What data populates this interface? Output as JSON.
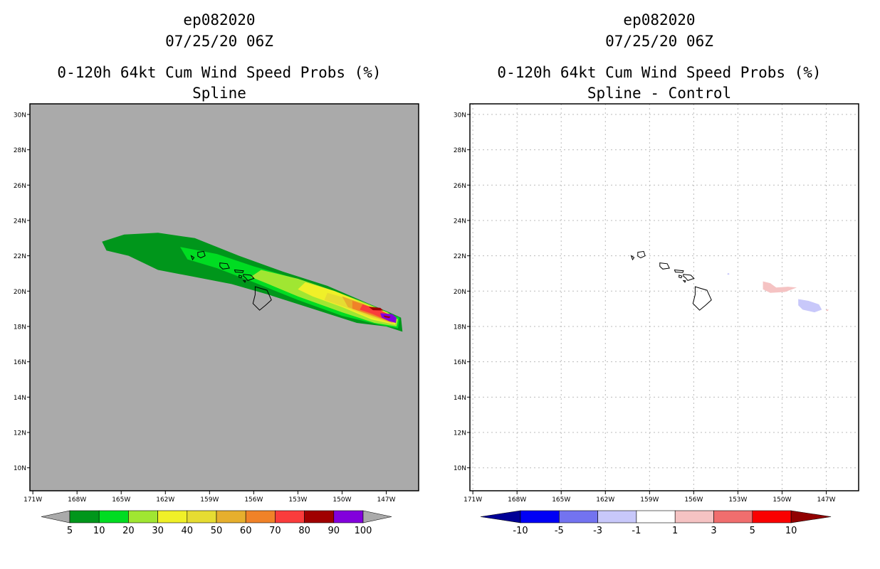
{
  "chart_data": [
    {
      "type": "heatmap",
      "title_lines": [
        "ep082020",
        "07/25/20 06Z",
        "0-120h 64kt Cum Wind Speed Probs (%)",
        "Spline"
      ],
      "x_ticks": [
        "171W",
        "168W",
        "165W",
        "162W",
        "159W",
        "156W",
        "153W",
        "150W",
        "147W"
      ],
      "y_ticks": [
        "10N",
        "12N",
        "14N",
        "16N",
        "18N",
        "20N",
        "22N",
        "24N",
        "26N",
        "28N",
        "30N"
      ],
      "xlim": [
        -171.2,
        -144.8
      ],
      "ylim": [
        8.7,
        30.6
      ],
      "background": "#aaaaaa",
      "levels": [
        {
          "label": "5",
          "min": 5,
          "color": "#00961b"
        },
        {
          "label": "10",
          "min": 10,
          "color": "#00dc22"
        },
        {
          "label": "20",
          "min": 20,
          "color": "#a0e632"
        },
        {
          "label": "30",
          "min": 30,
          "color": "#f0f028"
        },
        {
          "label": "40",
          "min": 40,
          "color": "#e6dc32"
        },
        {
          "label": "50",
          "min": 50,
          "color": "#e6af2d"
        },
        {
          "label": "60",
          "min": 60,
          "color": "#f08228"
        },
        {
          "label": "70",
          "min": 70,
          "color": "#fa3c3c"
        },
        {
          "label": "80",
          "min": 80,
          "color": "#a00000"
        },
        {
          "label": "90",
          "min": 90,
          "color": "#8200dc"
        },
        {
          "label": "100",
          "min": 100,
          "color": "#aaaaaa"
        }
      ],
      "colorbar_labels": [
        "5",
        "10",
        "20",
        "30",
        "40",
        "50",
        "60",
        "70",
        "80",
        "90",
        "100"
      ],
      "contours": [
        {
          "level": 5,
          "points": [
            [
              -166.3,
              22.8
            ],
            [
              -164.8,
              23.2
            ],
            [
              -162.5,
              23.3
            ],
            [
              -160.0,
              23.0
            ],
            [
              -157.0,
              22.0
            ],
            [
              -154.0,
              21.1
            ],
            [
              -151.0,
              20.3
            ],
            [
              -148.5,
              19.4
            ],
            [
              -146.8,
              18.8
            ],
            [
              -146.0,
              18.5
            ],
            [
              -145.9,
              17.7
            ],
            [
              -147.0,
              18.0
            ],
            [
              -149.0,
              18.2
            ],
            [
              -152.0,
              19.0
            ],
            [
              -155.0,
              19.8
            ],
            [
              -157.5,
              20.4
            ],
            [
              -160.0,
              20.8
            ],
            [
              -162.5,
              21.2
            ],
            [
              -164.5,
              22.0
            ],
            [
              -166.0,
              22.3
            ]
          ]
        },
        {
          "level": 10,
          "points": [
            [
              -161.0,
              22.5
            ],
            [
              -158.5,
              22.1
            ],
            [
              -156.0,
              21.4
            ],
            [
              -153.5,
              20.8
            ],
            [
              -151.0,
              20.1
            ],
            [
              -148.5,
              19.3
            ],
            [
              -147.0,
              18.8
            ],
            [
              -146.1,
              18.5
            ],
            [
              -146.2,
              17.9
            ],
            [
              -147.5,
              18.1
            ],
            [
              -150.0,
              18.6
            ],
            [
              -153.0,
              19.5
            ],
            [
              -156.0,
              20.5
            ],
            [
              -158.5,
              21.3
            ],
            [
              -160.5,
              21.8
            ]
          ]
        },
        {
          "level": 20,
          "points": [
            [
              -155.5,
              21.2
            ],
            [
              -153.0,
              20.7
            ],
            [
              -150.5,
              20.0
            ],
            [
              -148.3,
              19.3
            ],
            [
              -146.9,
              18.8
            ],
            [
              -146.2,
              18.4
            ],
            [
              -146.3,
              18.0
            ],
            [
              -147.8,
              18.2
            ],
            [
              -150.0,
              18.8
            ],
            [
              -153.0,
              19.7
            ],
            [
              -155.0,
              20.4
            ],
            [
              -156.2,
              20.8
            ]
          ]
        },
        {
          "level": 30,
          "points": [
            [
              -152.5,
              20.5
            ],
            [
              -150.5,
              20.0
            ],
            [
              -148.5,
              19.3
            ],
            [
              -147.0,
              18.8
            ],
            [
              -146.3,
              18.4
            ],
            [
              -146.4,
              18.1
            ],
            [
              -148.0,
              18.4
            ],
            [
              -150.0,
              19.1
            ],
            [
              -152.0,
              19.7
            ],
            [
              -153.0,
              20.1
            ]
          ]
        },
        {
          "level": 40,
          "points": [
            [
              -151.0,
              19.9
            ],
            [
              -149.3,
              19.5
            ],
            [
              -147.6,
              18.9
            ],
            [
              -146.4,
              18.4
            ],
            [
              -146.5,
              18.15
            ],
            [
              -148.0,
              18.5
            ],
            [
              -149.8,
              19.1
            ],
            [
              -151.2,
              19.5
            ]
          ]
        },
        {
          "level": 50,
          "points": [
            [
              -150.0,
              19.7
            ],
            [
              -148.6,
              19.3
            ],
            [
              -147.3,
              18.8
            ],
            [
              -146.5,
              18.4
            ],
            [
              -146.6,
              18.2
            ],
            [
              -148.0,
              18.6
            ],
            [
              -149.6,
              19.1
            ]
          ]
        },
        {
          "level": 60,
          "points": [
            [
              -149.3,
              19.45
            ],
            [
              -148.0,
              19.1
            ],
            [
              -147.0,
              18.7
            ],
            [
              -146.5,
              18.4
            ],
            [
              -146.7,
              18.25
            ],
            [
              -148.0,
              18.65
            ],
            [
              -149.3,
              19.0
            ]
          ]
        },
        {
          "level": 70,
          "points": [
            [
              -148.6,
              19.25
            ],
            [
              -147.5,
              18.95
            ],
            [
              -146.6,
              18.6
            ],
            [
              -146.5,
              18.35
            ],
            [
              -146.8,
              18.3
            ],
            [
              -147.9,
              18.7
            ],
            [
              -148.8,
              18.95
            ]
          ]
        },
        {
          "level": 80,
          "points": [
            [
              -148.2,
              19.12
            ],
            [
              -147.4,
              19.05
            ],
            [
              -147.2,
              18.9
            ],
            [
              -147.9,
              18.92
            ]
          ]
        },
        {
          "level": 90,
          "points": [
            [
              -147.4,
              18.75
            ],
            [
              -146.6,
              18.7
            ],
            [
              -146.3,
              18.5
            ],
            [
              -146.35,
              18.2
            ],
            [
              -146.8,
              18.3
            ],
            [
              -147.3,
              18.5
            ]
          ]
        },
        {
          "level": 80,
          "points": [
            [
              -147.2,
              18.62
            ],
            [
              -146.7,
              18.55
            ],
            [
              -146.8,
              18.48
            ],
            [
              -147.1,
              18.52
            ]
          ]
        }
      ]
    },
    {
      "type": "heatmap",
      "title_lines": [
        "ep082020",
        "07/25/20 06Z",
        "0-120h 64kt Cum Wind Speed Probs (%)",
        "Spline - Control"
      ],
      "x_ticks": [
        "171W",
        "168W",
        "165W",
        "162W",
        "159W",
        "156W",
        "153W",
        "150W",
        "147W"
      ],
      "y_ticks": [
        "10N",
        "12N",
        "14N",
        "16N",
        "18N",
        "20N",
        "22N",
        "24N",
        "26N",
        "28N",
        "30N"
      ],
      "xlim": [
        -171.2,
        -144.8
      ],
      "ylim": [
        8.7,
        30.6
      ],
      "grid": true,
      "background": "#ffffff",
      "levels": [
        {
          "label": "-10",
          "color": "#000096"
        },
        {
          "label": "-5",
          "color": "#0000f5"
        },
        {
          "label": "-3",
          "color": "#7373f0"
        },
        {
          "label": "-1",
          "color": "#c8c8fa"
        },
        {
          "label": "1",
          "color": "#ffffff"
        },
        {
          "label": "3",
          "color": "#f5c3c3"
        },
        {
          "label": "5",
          "color": "#f06e6e"
        },
        {
          "label": "10",
          "color": "#fa0000"
        },
        {
          "label": ">10",
          "color": "#910000"
        }
      ],
      "colorbar_labels": [
        "-10",
        "-5",
        "-3",
        "-1",
        "1",
        "3",
        "5",
        "10"
      ],
      "contours": [
        {
          "level": -1,
          "points": [
            [
              -148.9,
              19.55
            ],
            [
              -148.2,
              19.45
            ],
            [
              -147.5,
              19.25
            ],
            [
              -147.3,
              18.95
            ],
            [
              -147.8,
              18.8
            ],
            [
              -148.6,
              18.95
            ],
            [
              -148.9,
              19.2
            ]
          ]
        },
        {
          "level": 1,
          "points": [
            [
              -151.3,
              20.55
            ],
            [
              -150.8,
              20.45
            ],
            [
              -150.4,
              20.2
            ],
            [
              -149.6,
              20.25
            ],
            [
              -149.0,
              20.2
            ],
            [
              -149.8,
              19.95
            ],
            [
              -150.8,
              19.9
            ],
            [
              -151.3,
              20.1
            ]
          ]
        },
        {
          "level": -1,
          "points": [
            [
              -153.72,
              21.0
            ],
            [
              -153.6,
              21.02
            ],
            [
              -153.58,
              20.94
            ],
            [
              -153.7,
              20.93
            ]
          ]
        },
        {
          "level": 1,
          "points": [
            [
              -147.0,
              18.95
            ],
            [
              -146.85,
              18.97
            ],
            [
              -146.88,
              18.88
            ],
            [
              -147.0,
              18.88
            ]
          ]
        }
      ]
    }
  ],
  "islands": [
    {
      "name": "Kauai",
      "points": [
        [
          -159.8,
          22.2
        ],
        [
          -159.4,
          22.25
        ],
        [
          -159.3,
          22.0
        ],
        [
          -159.6,
          21.88
        ],
        [
          -159.8,
          21.98
        ]
      ]
    },
    {
      "name": "Niihau",
      "points": [
        [
          -160.25,
          22.0
        ],
        [
          -160.05,
          21.9
        ],
        [
          -160.15,
          21.78
        ]
      ]
    },
    {
      "name": "Oahu",
      "points": [
        [
          -158.3,
          21.6
        ],
        [
          -157.8,
          21.55
        ],
        [
          -157.65,
          21.3
        ],
        [
          -158.1,
          21.25
        ],
        [
          -158.3,
          21.4
        ]
      ]
    },
    {
      "name": "Molokai",
      "points": [
        [
          -157.3,
          21.2
        ],
        [
          -156.7,
          21.15
        ],
        [
          -156.75,
          21.05
        ],
        [
          -157.25,
          21.08
        ]
      ]
    },
    {
      "name": "Lanai",
      "points": [
        [
          -157.0,
          20.9
        ],
        [
          -156.8,
          20.85
        ],
        [
          -156.85,
          20.75
        ],
        [
          -157.0,
          20.78
        ]
      ]
    },
    {
      "name": "Maui",
      "points": [
        [
          -156.7,
          20.95
        ],
        [
          -156.2,
          20.9
        ],
        [
          -155.98,
          20.72
        ],
        [
          -156.4,
          20.6
        ],
        [
          -156.55,
          20.75
        ],
        [
          -156.7,
          20.85
        ]
      ]
    },
    {
      "name": "Kahoolawe",
      "points": [
        [
          -156.7,
          20.6
        ],
        [
          -156.55,
          20.58
        ],
        [
          -156.6,
          20.5
        ]
      ]
    },
    {
      "name": "Big Island",
      "points": [
        [
          -155.9,
          20.25
        ],
        [
          -155.1,
          20.05
        ],
        [
          -154.8,
          19.5
        ],
        [
          -155.2,
          19.2
        ],
        [
          -155.6,
          18.92
        ],
        [
          -156.05,
          19.3
        ],
        [
          -155.9,
          19.8
        ]
      ]
    }
  ]
}
